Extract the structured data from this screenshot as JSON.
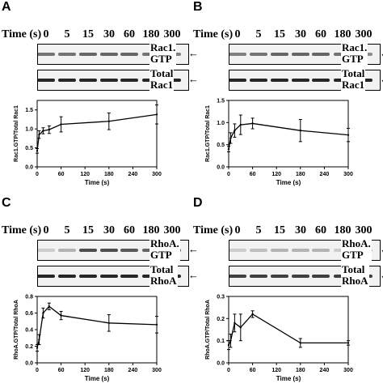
{
  "time_label": "Time (s)",
  "time_points": [
    "0",
    "5",
    "15",
    "30",
    "60",
    "180",
    "300"
  ],
  "panels": [
    {
      "letter": "A",
      "blot_top": {
        "label_line1": "Rac1.",
        "label_line2": "GTP",
        "intensity": [
          0.55,
          0.55,
          0.6,
          0.6,
          0.6,
          0.55,
          0.5
        ]
      },
      "blot_bottom": {
        "label_line1": "Total",
        "label_line2": "Rac1",
        "intensity": [
          0.85,
          0.85,
          0.85,
          0.85,
          0.85,
          0.85,
          0.85
        ]
      }
    },
    {
      "letter": "B",
      "blot_top": {
        "label_line1": "Rac1.",
        "label_line2": "GTP",
        "intensity": [
          0.5,
          0.55,
          0.6,
          0.6,
          0.6,
          0.55,
          0.45
        ]
      },
      "blot_bottom": {
        "label_line1": "Total",
        "label_line2": "Rac1",
        "intensity": [
          0.85,
          0.85,
          0.85,
          0.85,
          0.85,
          0.85,
          0.85
        ]
      }
    },
    {
      "letter": "C",
      "blot_top": {
        "label_line1": "RhoA.",
        "label_line2": "GTP",
        "intensity": [
          0.2,
          0.3,
          0.7,
          0.7,
          0.65,
          0.6,
          0.6
        ]
      },
      "blot_bottom": {
        "label_line1": "Total",
        "label_line2": "RhoA",
        "intensity": [
          0.85,
          0.85,
          0.85,
          0.85,
          0.85,
          0.85,
          0.85
        ]
      }
    },
    {
      "letter": "D",
      "blot_top": {
        "label_line1": "RhoA.",
        "label_line2": "GTP",
        "intensity": [
          0.2,
          0.25,
          0.3,
          0.3,
          0.3,
          0.2,
          0.25
        ]
      },
      "blot_bottom": {
        "label_line1": "Total",
        "label_line2": "RhoA",
        "intensity": [
          0.75,
          0.75,
          0.75,
          0.75,
          0.75,
          0.75,
          0.75
        ]
      }
    }
  ],
  "chart_data": [
    {
      "type": "line",
      "xlabel": "Time (s)",
      "ylabel": "Rac1.GTP/Total Rac1",
      "xlim": [
        0,
        300
      ],
      "ylim": [
        0,
        1.75
      ],
      "xticks": [
        0,
        60,
        120,
        180,
        240,
        300
      ],
      "yticks": [
        0.0,
        0.5,
        1.0,
        1.5
      ],
      "ytick_labels": [
        "0.0",
        "0.5",
        "1.0",
        "1.5"
      ],
      "x": [
        0,
        5,
        15,
        30,
        60,
        180,
        300
      ],
      "y": [
        0.42,
        0.85,
        0.95,
        0.98,
        1.12,
        1.2,
        1.38
      ],
      "err": [
        0.06,
        0.1,
        0.08,
        0.1,
        0.2,
        0.22,
        0.25
      ]
    },
    {
      "type": "line",
      "xlabel": "Time (s)",
      "ylabel": "Rac1.GTP/Total Rac1",
      "xlim": [
        0,
        300
      ],
      "ylim": [
        0,
        1.5
      ],
      "xticks": [
        0,
        60,
        120,
        180,
        240,
        300
      ],
      "yticks": [
        0.0,
        0.5,
        1.0,
        1.5
      ],
      "ytick_labels": [
        "0.0",
        "0.5",
        "1.0",
        "1.5"
      ],
      "x": [
        0,
        5,
        15,
        30,
        60,
        180,
        300
      ],
      "y": [
        0.4,
        0.65,
        0.82,
        0.95,
        0.98,
        0.82,
        0.72
      ],
      "err": [
        0.06,
        0.12,
        0.15,
        0.22,
        0.12,
        0.25,
        0.15
      ]
    },
    {
      "type": "line",
      "xlabel": "Time (s)",
      "ylabel": "RhoA.GTP/Total RhoA",
      "xlim": [
        0,
        300
      ],
      "ylim": [
        0,
        0.8
      ],
      "xticks": [
        0,
        60,
        120,
        180,
        240,
        300
      ],
      "yticks": [
        0.0,
        0.2,
        0.4,
        0.6,
        0.8
      ],
      "ytick_labels": [
        "0.0",
        "0.2",
        "0.4",
        "0.6",
        "0.8"
      ],
      "x": [
        0,
        5,
        15,
        30,
        60,
        180,
        300
      ],
      "y": [
        0.18,
        0.28,
        0.6,
        0.68,
        0.57,
        0.48,
        0.46
      ],
      "err": [
        0.04,
        0.06,
        0.06,
        0.04,
        0.05,
        0.1,
        0.1
      ]
    },
    {
      "type": "line",
      "xlabel": "Time (s)",
      "ylabel": "RhoA.GTP/Total RhoA",
      "xlim": [
        0,
        300
      ],
      "ylim": [
        0,
        0.3
      ],
      "xticks": [
        0,
        60,
        120,
        180,
        240,
        300
      ],
      "yticks": [
        0.0,
        0.1,
        0.2,
        0.3
      ],
      "ytick_labels": [
        "0.0",
        "0.1",
        "0.2",
        "0.3"
      ],
      "x": [
        0,
        5,
        15,
        30,
        60,
        180,
        300
      ],
      "y": [
        0.08,
        0.1,
        0.18,
        0.16,
        0.22,
        0.09,
        0.09
      ],
      "err": [
        0.02,
        0.03,
        0.04,
        0.06,
        0.015,
        0.02,
        0.01
      ]
    }
  ]
}
